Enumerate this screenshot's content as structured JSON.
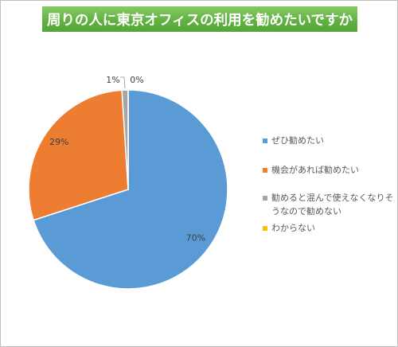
{
  "chart_data": {
    "type": "pie",
    "title": "周りの人に東京オフィスの利用を勧めたいですか",
    "categories": [
      "ぜひ勧めたい",
      "機会があれば勧めたい",
      "勧めると混んで使えなくなりそうなので勧めない",
      "わからない"
    ],
    "values": [
      70,
      29,
      1,
      0
    ],
    "data_labels": [
      "70%",
      "29%",
      "1%",
      "0%"
    ],
    "colors": [
      "#5B9BD5",
      "#ED7D31",
      "#A5A5A5",
      "#FFC000"
    ],
    "legend_position": "right"
  },
  "colors": {
    "title_banner": "#62B243",
    "title_text": "#FFFFFF",
    "legend_text": "#595959",
    "label_text": "#404040",
    "border": "#BFBFBF"
  }
}
